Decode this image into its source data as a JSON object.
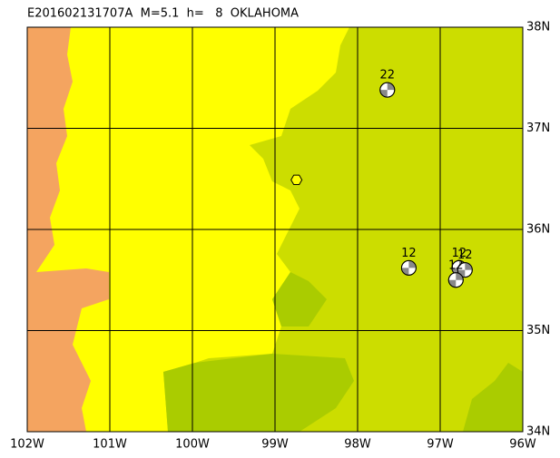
{
  "title": "E201602131707A  M=5.1  h=   8  OKLAHOMA",
  "lon_range": [
    -102,
    -96
  ],
  "lat_range": [
    34,
    38
  ],
  "lon_ticks": [
    {
      "value": -102,
      "label": "102W"
    },
    {
      "value": -101,
      "label": "101W"
    },
    {
      "value": -100,
      "label": "100W"
    },
    {
      "value": -99,
      "label": "99W"
    },
    {
      "value": -98,
      "label": "98W"
    },
    {
      "value": -97,
      "label": "97W"
    },
    {
      "value": -96,
      "label": "96W"
    }
  ],
  "lat_ticks": [
    {
      "value": 38,
      "label": "38N"
    },
    {
      "value": 37,
      "label": "37N"
    },
    {
      "value": 36,
      "label": "36N"
    },
    {
      "value": 35,
      "label": "35N"
    },
    {
      "value": 34,
      "label": "34N"
    }
  ],
  "epicenter": {
    "lon": -98.74,
    "lat": 36.49
  },
  "mechanisms": [
    {
      "label": "22",
      "lon": -97.64,
      "lat": 37.38
    },
    {
      "label": "12",
      "lon": -97.38,
      "lat": 35.62
    },
    {
      "label": "12",
      "lon": -96.77,
      "lat": 35.62
    },
    {
      "label": "12",
      "lon": -96.7,
      "lat": 35.6
    },
    {
      "label": "12",
      "lon": -96.81,
      "lat": 35.5
    }
  ]
}
